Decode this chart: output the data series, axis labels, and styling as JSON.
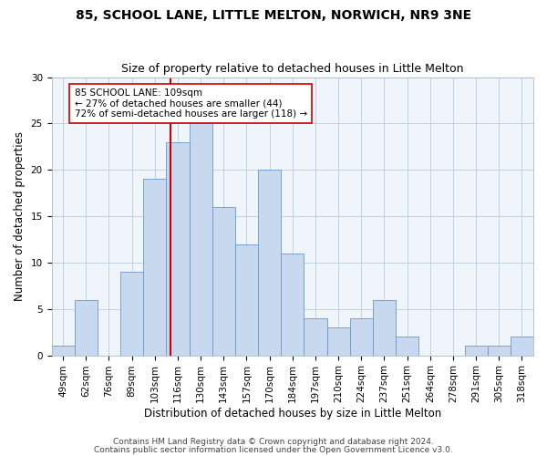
{
  "title": "85, SCHOOL LANE, LITTLE MELTON, NORWICH, NR9 3NE",
  "subtitle": "Size of property relative to detached houses in Little Melton",
  "xlabel": "Distribution of detached houses by size in Little Melton",
  "ylabel": "Number of detached properties",
  "bin_labels": [
    "49sqm",
    "62sqm",
    "76sqm",
    "89sqm",
    "103sqm",
    "116sqm",
    "130sqm",
    "143sqm",
    "157sqm",
    "170sqm",
    "184sqm",
    "197sqm",
    "210sqm",
    "224sqm",
    "237sqm",
    "251sqm",
    "264sqm",
    "278sqm",
    "291sqm",
    "305sqm",
    "318sqm"
  ],
  "counts": [
    1,
    6,
    0,
    9,
    19,
    23,
    25,
    16,
    12,
    20,
    11,
    4,
    3,
    4,
    6,
    2,
    0,
    0,
    1,
    1,
    2
  ],
  "bar_color": "#c8d9ef",
  "bar_edge_color": "#6699cc",
  "property_line_bin": 4.7,
  "property_line_color": "#cc0000",
  "annotation_text": "85 SCHOOL LANE: 109sqm\n← 27% of detached houses are smaller (44)\n72% of semi-detached houses are larger (118) →",
  "annotation_box_color": "#ffffff",
  "annotation_box_edge_color": "#cc0000",
  "ylim": [
    0,
    30
  ],
  "yticks": [
    0,
    5,
    10,
    15,
    20,
    25,
    30
  ],
  "footer1": "Contains HM Land Registry data © Crown copyright and database right 2024.",
  "footer2": "Contains public sector information licensed under the Open Government Licence v3.0.",
  "title_fontsize": 10,
  "subtitle_fontsize": 9,
  "axis_label_fontsize": 8.5,
  "tick_fontsize": 7.5,
  "footer_fontsize": 6.5,
  "bg_color": "#f0f4fb"
}
